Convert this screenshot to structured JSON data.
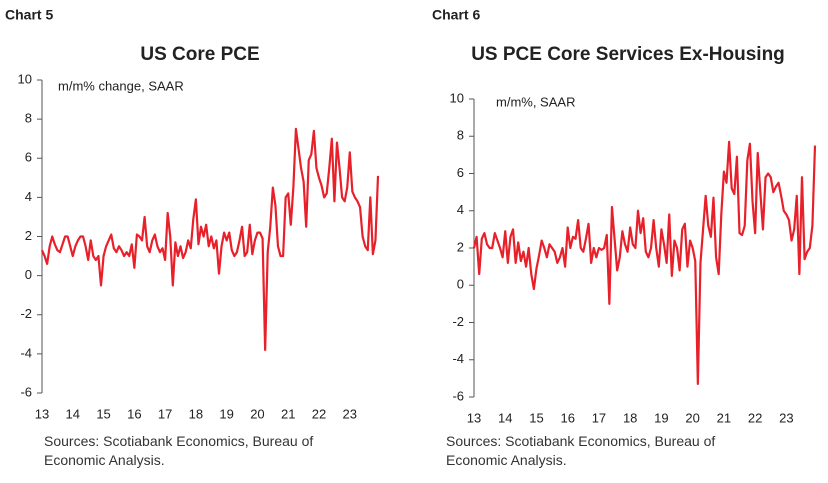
{
  "chart_data": [
    {
      "type": "line",
      "label": "Chart 5",
      "title": "US Core PCE",
      "subtitle": "m/m% change, SAAR",
      "note": "Sources: Scotiabank Economics, Bureau of Economic Analysis.",
      "categories": [
        "13",
        null,
        null,
        null,
        null,
        null,
        null,
        null,
        null,
        null,
        null,
        null,
        "14",
        null,
        null,
        null,
        null,
        null,
        null,
        null,
        null,
        null,
        null,
        null,
        "15",
        null,
        null,
        null,
        null,
        null,
        null,
        null,
        null,
        null,
        null,
        null,
        "16",
        null,
        null,
        null,
        null,
        null,
        null,
        null,
        null,
        null,
        null,
        null,
        "17",
        null,
        null,
        null,
        null,
        null,
        null,
        null,
        null,
        null,
        null,
        null,
        "18",
        null,
        null,
        null,
        null,
        null,
        null,
        null,
        null,
        null,
        null,
        null,
        "19",
        null,
        null,
        null,
        null,
        null,
        null,
        null,
        null,
        null,
        null,
        null,
        "20",
        null,
        null,
        null,
        null,
        null,
        null,
        null,
        null,
        null,
        null,
        null,
        "21",
        null,
        null,
        null,
        null,
        null,
        null,
        null,
        null,
        null,
        null,
        null,
        "22",
        null,
        null,
        null,
        null,
        null,
        null,
        null,
        null,
        null,
        null,
        null,
        "23",
        null,
        null,
        null,
        null,
        null,
        null,
        null,
        null,
        null,
        null,
        null
      ],
      "values": [
        1.3,
        1.0,
        0.6,
        1.5,
        2.0,
        1.6,
        1.3,
        1.2,
        1.6,
        2.0,
        2.0,
        1.5,
        1.0,
        1.5,
        1.8,
        2.0,
        2.0,
        1.5,
        0.8,
        1.8,
        1.0,
        0.8,
        1.0,
        -0.5,
        1.0,
        1.5,
        1.8,
        2.1,
        1.4,
        1.2,
        1.5,
        1.3,
        1.0,
        1.2,
        1.0,
        1.6,
        0.4,
        2.1,
        2.0,
        1.8,
        3.0,
        1.5,
        1.2,
        1.8,
        2.1,
        1.5,
        1.2,
        1.4,
        0.8,
        3.2,
        2.0,
        -0.5,
        1.7,
        1.0,
        1.5,
        0.9,
        1.2,
        1.8,
        1.4,
        2.9,
        3.9,
        1.6,
        2.5,
        2.0,
        2.6,
        1.5,
        2.0,
        1.4,
        1.8,
        0.1,
        1.5,
        2.2,
        1.8,
        2.2,
        1.3,
        1.0,
        1.2,
        1.8,
        2.5,
        1.0,
        1.2,
        2.6,
        1.1,
        1.8,
        2.2,
        2.2,
        1.9,
        -3.8,
        1.2,
        2.5,
        4.5,
        3.6,
        1.5,
        1.0,
        1.0,
        4.0,
        4.2,
        2.6,
        4.5,
        7.5,
        6.5,
        5.5,
        4.8,
        2.5,
        5.9,
        6.2,
        7.4,
        5.5,
        5.0,
        4.6,
        4.0,
        4.2,
        5.5,
        7.0,
        3.8,
        6.8,
        5.5,
        4.0,
        3.8,
        4.5,
        6.3,
        4.3,
        4.0,
        3.8,
        3.5,
        2.0,
        1.5,
        1.3,
        4.0,
        1.1,
        1.8,
        5.1
      ],
      "color": "#e8202a",
      "ylim": [
        -6,
        10
      ],
      "yticks": [
        -6,
        -4,
        -2,
        0,
        2,
        4,
        6,
        8,
        10
      ]
    },
    {
      "type": "line",
      "label": "Chart 6",
      "title": "US PCE Core Services Ex-Housing",
      "subtitle": "m/m%, SAAR",
      "note": "Sources: Scotiabank Economics, Bureau of Economic Analysis.",
      "categories": [
        "13",
        null,
        null,
        null,
        null,
        null,
        null,
        null,
        null,
        null,
        null,
        null,
        "14",
        null,
        null,
        null,
        null,
        null,
        null,
        null,
        null,
        null,
        null,
        null,
        "15",
        null,
        null,
        null,
        null,
        null,
        null,
        null,
        null,
        null,
        null,
        null,
        "16",
        null,
        null,
        null,
        null,
        null,
        null,
        null,
        null,
        null,
        null,
        null,
        "17",
        null,
        null,
        null,
        null,
        null,
        null,
        null,
        null,
        null,
        null,
        null,
        "18",
        null,
        null,
        null,
        null,
        null,
        null,
        null,
        null,
        null,
        null,
        null,
        "19",
        null,
        null,
        null,
        null,
        null,
        null,
        null,
        null,
        null,
        null,
        null,
        "20",
        null,
        null,
        null,
        null,
        null,
        null,
        null,
        null,
        null,
        null,
        null,
        "21",
        null,
        null,
        null,
        null,
        null,
        null,
        null,
        null,
        null,
        null,
        null,
        "22",
        null,
        null,
        null,
        null,
        null,
        null,
        null,
        null,
        null,
        null,
        null,
        "23",
        null,
        null,
        null,
        null,
        null,
        null,
        null,
        null,
        null,
        null,
        null
      ],
      "values": [
        2.0,
        2.6,
        0.6,
        2.5,
        2.8,
        2.2,
        2.0,
        2.0,
        2.8,
        2.4,
        2.0,
        1.5,
        2.9,
        1.2,
        2.6,
        3.0,
        1.2,
        2.3,
        1.3,
        1.8,
        1.0,
        2.0,
        0.6,
        -0.2,
        0.9,
        1.6,
        2.4,
        2.0,
        1.5,
        2.2,
        2.0,
        1.8,
        1.2,
        1.5,
        2.0,
        1.0,
        3.1,
        2.0,
        2.6,
        2.5,
        3.5,
        2.0,
        1.8,
        2.5,
        3.3,
        1.2,
        2.0,
        1.5,
        2.0,
        1.9,
        2.0,
        2.7,
        -1.0,
        4.2,
        2.5,
        0.8,
        1.5,
        2.9,
        2.2,
        1.8,
        3.1,
        2.2,
        2.0,
        4.0,
        2.8,
        3.6,
        1.8,
        1.5,
        2.0,
        3.5,
        2.0,
        1.0,
        3.0,
        2.2,
        1.2,
        3.8,
        0.5,
        2.4,
        2.0,
        0.8,
        3.0,
        3.3,
        1.0,
        2.4,
        2.0,
        1.3,
        -5.3,
        1.2,
        3.0,
        4.8,
        3.2,
        2.6,
        4.7,
        1.5,
        0.6,
        3.8,
        6.1,
        5.5,
        7.7,
        5.2,
        4.9,
        6.9,
        2.8,
        2.7,
        3.2,
        6.7,
        7.6,
        4.5,
        2.8,
        7.1,
        5.0,
        3.0,
        5.8,
        6.0,
        5.8,
        5.0,
        5.3,
        5.5,
        4.8,
        4.0,
        3.8,
        3.5,
        2.4,
        3.0,
        4.8,
        0.6,
        5.8,
        1.4,
        1.8,
        2.0,
        3.2,
        7.5
      ],
      "color": "#e8202a",
      "ylim": [
        -6,
        10
      ],
      "yticks": [
        -6,
        -4,
        -2,
        0,
        2,
        4,
        6,
        8,
        10
      ]
    }
  ]
}
